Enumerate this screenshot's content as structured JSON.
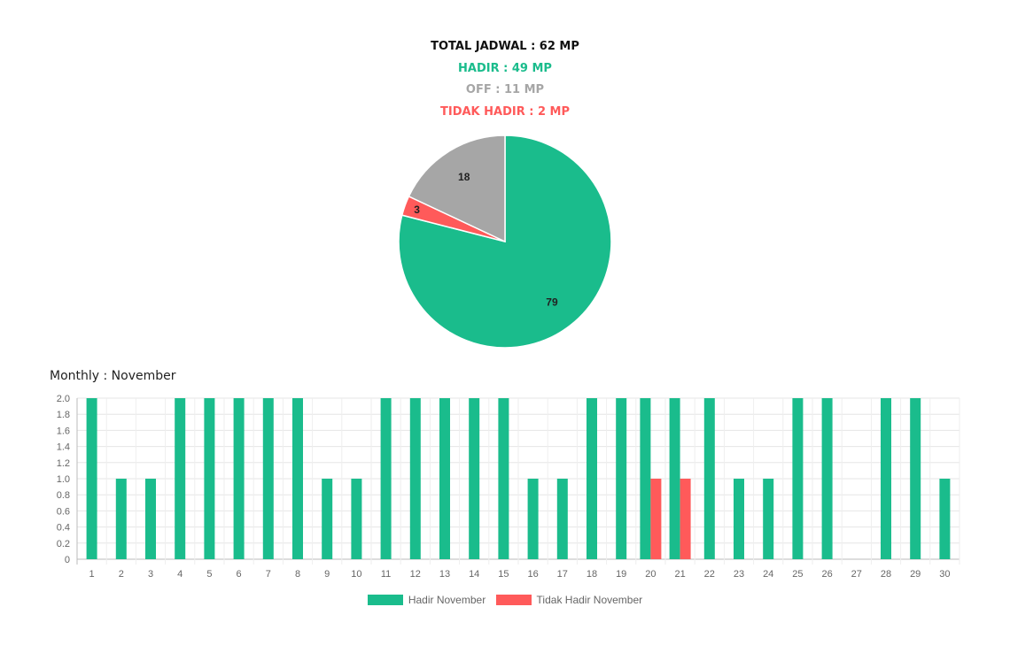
{
  "summary": {
    "total": "TOTAL JADWAL : 62 MP",
    "hadir": "HADIR : 49 MP",
    "off": "OFF : 11 MP",
    "tidak_hadir": "TIDAK HADIR : 2 MP"
  },
  "colors": {
    "hadir": "#1abc8c",
    "off": "#a6a6a6",
    "tidak_hadir": "#ff5a5a"
  },
  "chart_data": [
    {
      "type": "pie",
      "slices": [
        {
          "label": "79",
          "value": 79,
          "color": "#1abc8c"
        },
        {
          "label": "3",
          "value": 3,
          "color": "#ff5a5a"
        },
        {
          "label": "18",
          "value": 18,
          "color": "#a6a6a6"
        }
      ]
    },
    {
      "type": "bar",
      "title": "Monthly : November",
      "categories": [
        "1",
        "2",
        "3",
        "4",
        "5",
        "6",
        "7",
        "8",
        "9",
        "10",
        "11",
        "12",
        "13",
        "14",
        "15",
        "16",
        "17",
        "18",
        "19",
        "20",
        "21",
        "22",
        "23",
        "24",
        "25",
        "26",
        "27",
        "28",
        "29",
        "30"
      ],
      "series": [
        {
          "name": "Hadir November",
          "color": "#1abc8c",
          "values": [
            2,
            1,
            1,
            2,
            2,
            2,
            2,
            2,
            1,
            1,
            2,
            2,
            2,
            2,
            2,
            1,
            1,
            2,
            2,
            2,
            2,
            2,
            1,
            1,
            2,
            2,
            0,
            2,
            2,
            1
          ]
        },
        {
          "name": "Tidak Hadir November",
          "color": "#ff5a5a",
          "values": [
            0,
            0,
            0,
            0,
            0,
            0,
            0,
            0,
            0,
            0,
            0,
            0,
            0,
            0,
            0,
            0,
            0,
            0,
            0,
            1,
            1,
            0,
            0,
            0,
            0,
            0,
            0,
            0,
            0,
            0
          ]
        }
      ],
      "yticks": [
        "0",
        "0.2",
        "0.4",
        "0.6",
        "0.8",
        "1.0",
        "1.2",
        "1.4",
        "1.6",
        "1.8",
        "2.0"
      ],
      "ylim": [
        0,
        2
      ],
      "grid": true,
      "legend": "bottom"
    }
  ]
}
